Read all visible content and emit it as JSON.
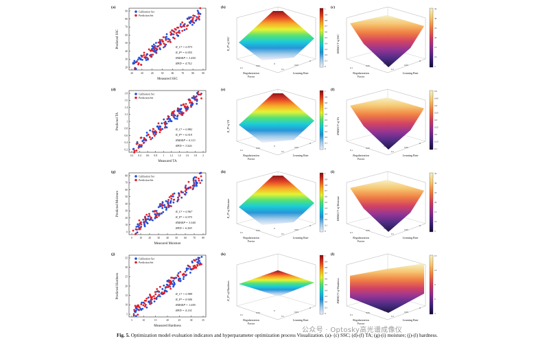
{
  "caption": {
    "label": "Fig. 5.",
    "text": "Optimization model evaluation indicators and hyperparameter optimization process Visualization. (a)- (c) SSC; (d)-(f) TA; (g)-(i) moisture; (j)-(l) hardness."
  },
  "watermark": "公众号 · Optosky高光谱成像仪",
  "colors": {
    "calibration": "#1f4fd8",
    "prediction": "#e0202a",
    "colormap_rmsecv": [
      "#f4f1c4",
      "#f6c46a",
      "#ef7a3a",
      "#d1395a",
      "#8d2a8f",
      "#43217e",
      "#140a3a"
    ],
    "colormap_rp2": [
      "#f0f0fa",
      "#9ec9e8",
      "#1c8fd6",
      "#0fc9d6",
      "#4be06f",
      "#e4f22a",
      "#f7a21c",
      "#e23a1d",
      "#8c0a0a"
    ]
  },
  "rows": [
    {
      "scatter": {
        "panel_label": "(a)",
        "legend": [
          "Calibration Set",
          "Prediction Set"
        ],
        "ylabel": "Predicted SSC",
        "xlabel": "Measured SSC",
        "xticks": [
          "20",
          "30",
          "40",
          "50",
          "60",
          "70",
          "80",
          "90"
        ],
        "yticks": [
          "20",
          "30",
          "40",
          "50",
          "60",
          "70",
          "80",
          "90"
        ],
        "stats": [
          "R_C² = 0.973",
          "R_P² = 0.955",
          "RMSEP = 3.450",
          "RPD = 4.752"
        ]
      },
      "surface_rp2": {
        "panel_label": "(b)",
        "zlabel": "R_P² of SSC",
        "xlabel": "Regularization Factor",
        "ylabel": "Learning Rate",
        "cbar_ticks": [
          "1",
          "0.9",
          "0.8",
          "0.7",
          "0.6",
          "0.5",
          "0.4",
          "0.3",
          "0.2",
          "0.1",
          "0"
        ]
      },
      "surface_rmse": {
        "panel_label": "(c)",
        "zlabel": "RMSECV of SSC",
        "xlabel": "Regularization Factor",
        "ylabel": "Learning Rate",
        "cbar_ticks": [
          "35",
          "30",
          "25",
          "20",
          "15",
          "10",
          "5"
        ]
      }
    },
    {
      "scatter": {
        "panel_label": "(d)",
        "legend": [
          "Calibration Set",
          "Prediction Set"
        ],
        "ylabel": "Predicted TA",
        "xlabel": "Measured TA",
        "xticks": [
          "0.2",
          "0.4",
          "0.6",
          "0.8",
          "1",
          "1.2",
          "1.4",
          "1.6",
          "1.8",
          "2"
        ],
        "yticks": [
          "0.2",
          "0.4",
          "0.6",
          "0.8",
          "1",
          "1.2",
          "1.4",
          "1.6",
          "1.8"
        ],
        "stats": [
          "R_C² = 0.882",
          "R_P² = 0.919",
          "RMSEP = 0.113",
          "RPD = 3.526"
        ]
      },
      "surface_rp2": {
        "panel_label": "(e)",
        "zlabel": "R_P² of TA",
        "xlabel": "Regularization Factor",
        "ylabel": "Learning Rate",
        "cbar_ticks": [
          "1",
          "0.9",
          "0.8",
          "0.7",
          "0.6",
          "0.5",
          "0.4",
          "0.3",
          "0.2",
          "0.1",
          "0"
        ]
      },
      "surface_rmse": {
        "panel_label": "(f)",
        "zlabel": "RMSECV of TA",
        "xlabel": "Regularization Factor",
        "ylabel": "Learning Rate",
        "cbar_ticks": [
          "0.5",
          "0.45",
          "0.4",
          "0.35",
          "0.3",
          "0.25",
          "0.2",
          "0.15",
          "0.1"
        ]
      }
    },
    {
      "scatter": {
        "panel_label": "(g)",
        "legend": [
          "Calibration Set",
          "Prediction Set"
        ],
        "ylabel": "Predicted Moisture",
        "xlabel": "Measured Moisture",
        "xticks": [
          "0",
          "10",
          "20",
          "30",
          "40",
          "50",
          "60",
          "70",
          "80"
        ],
        "yticks": [
          "0",
          "10",
          "20",
          "30",
          "40",
          "50",
          "60",
          "70",
          "80"
        ],
        "stats": [
          "R_C² = 0.967",
          "R_P² = 0.975",
          "RMSEP = 3.540",
          "RPD = 6.309"
        ]
      },
      "surface_rp2": {
        "panel_label": "(h)",
        "zlabel": "R_P² of Moisture",
        "xlabel": "Regularization Factor",
        "ylabel": "Learning Rate",
        "cbar_ticks": [
          "1",
          "0.9",
          "0.8",
          "0.7",
          "0.6",
          "0.5",
          "0.4",
          "0.3",
          "0.2",
          "0.1",
          "0"
        ]
      },
      "surface_rmse": {
        "panel_label": "(i)",
        "zlabel": "RMSECV of Moisture",
        "xlabel": "Regularization Factor",
        "ylabel": "Learning Rate",
        "cbar_ticks": [
          "35",
          "30",
          "25",
          "20",
          "15",
          "10",
          "5"
        ]
      }
    },
    {
      "scatter": {
        "panel_label": "(j)",
        "legend": [
          "Calibration Set",
          "Prediction Set"
        ],
        "ylabel": "Predicted Hardness",
        "xlabel": "Measured Hardness",
        "xticks": [
          "5",
          "10",
          "15",
          "20",
          "25",
          "30",
          "35"
        ],
        "yticks": [
          "5",
          "10",
          "15",
          "20",
          "25",
          "30",
          "35"
        ],
        "stats": [
          "R_C² = 0.989",
          "R_P² = 0.946",
          "RMSEP = 1.695",
          "RPD = 4.114"
        ]
      },
      "surface_rp2": {
        "panel_label": "(k)",
        "zlabel": "R_P² of Hardness",
        "xlabel": "Regularization Factor",
        "ylabel": "Learning Rate",
        "cbar_ticks": [
          "1",
          "0.9",
          "0.8",
          "0.7",
          "0.6",
          "0.5",
          "0.4",
          "0.3",
          "0.2",
          "0.1",
          "0"
        ]
      },
      "surface_rmse": {
        "panel_label": "(l)",
        "zlabel": "RMSECV of Hardness",
        "xlabel": "Regularization Factor",
        "ylabel": "Learning Rate",
        "cbar_ticks": [
          "15",
          "12",
          "9",
          "6",
          "3"
        ]
      }
    }
  ],
  "surface_axis_ticks": {
    "regularization": [
      "0.1",
      "0.05",
      "0"
    ],
    "learning_rate": [
      "0.1",
      "0.05",
      "0"
    ]
  }
}
